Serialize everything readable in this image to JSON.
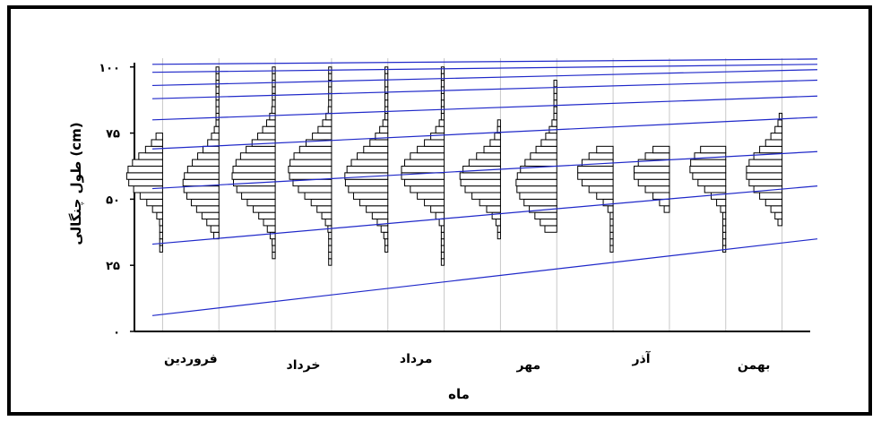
{
  "chart_data": {
    "type": "histogram-strip",
    "xlabel": "ماه",
    "ylabel": "طول چنگالی (cm)",
    "ylim": [
      0,
      105
    ],
    "y_ticks": [
      {
        "value": 0,
        "label": "۰"
      },
      {
        "value": 25,
        "label": "۲۵"
      },
      {
        "value": 50,
        "label": "۵۰"
      },
      {
        "value": 75,
        "label": "۷۵"
      },
      {
        "value": 100,
        "label": "۱۰۰"
      }
    ],
    "category_labels": [
      {
        "label": "فروردین",
        "pos": 1.5
      },
      {
        "label": "خرداد",
        "pos": 3.5
      },
      {
        "label": "مرداد",
        "pos": 5.5
      },
      {
        "label": "مهر",
        "pos": 7.5
      },
      {
        "label": "آذر",
        "pos": 9.5
      },
      {
        "label": "بهمن",
        "pos": 11.5
      }
    ],
    "bin_width": 2.5,
    "months": [
      {
        "month": 1,
        "center": 59,
        "sd": 8,
        "min": 32,
        "max": 75,
        "peak": 0.75
      },
      {
        "month": 2,
        "center": 56,
        "sd": 10,
        "min": 35,
        "max": 100,
        "peak": 0.75
      },
      {
        "month": 3,
        "center": 59,
        "sd": 11,
        "min": 28,
        "max": 100,
        "peak": 0.9
      },
      {
        "month": 4,
        "center": 61,
        "sd": 10,
        "min": 25,
        "max": 100,
        "peak": 0.9
      },
      {
        "month": 5,
        "center": 58,
        "sd": 10,
        "min": 32,
        "max": 100,
        "peak": 0.9
      },
      {
        "month": 6,
        "center": 60,
        "sd": 9,
        "min": 25,
        "max": 100,
        "peak": 0.9
      },
      {
        "month": 7,
        "center": 58,
        "sd": 8,
        "min": 35,
        "max": 78,
        "peak": 0.85
      },
      {
        "month": 8,
        "center": 56,
        "sd": 11,
        "min": 38,
        "max": 95,
        "peak": 0.85
      },
      {
        "month": 9,
        "center": 60,
        "sd": 7,
        "min": 32,
        "max": 70,
        "peak": 0.75
      },
      {
        "month": 10,
        "center": 60,
        "sd": 7,
        "min": 45,
        "max": 68,
        "peak": 0.75
      },
      {
        "month": 11,
        "center": 62,
        "sd": 8,
        "min": 32,
        "max": 68,
        "peak": 0.75
      },
      {
        "month": 12,
        "center": 60,
        "sd": 9,
        "min": 40,
        "max": 81,
        "peak": 0.75
      }
    ],
    "reference_lines": [
      {
        "y_start": 6,
        "y_end": 35
      },
      {
        "y_start": 33,
        "y_end": 55
      },
      {
        "y_start": 54,
        "y_end": 68
      },
      {
        "y_start": 69,
        "y_end": 81
      },
      {
        "y_start": 80,
        "y_end": 89
      },
      {
        "y_start": 88,
        "y_end": 95
      },
      {
        "y_start": 93,
        "y_end": 99
      },
      {
        "y_start": 98,
        "y_end": 101
      },
      {
        "y_start": 101,
        "y_end": 103
      }
    ],
    "grid": false,
    "colors": {
      "bars": "#000000",
      "bar_fill": "#ffffff",
      "reference_line": "#1f28c9",
      "month_divider": "#c8c8c8"
    }
  }
}
